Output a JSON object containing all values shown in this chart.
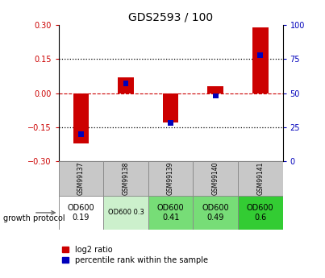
{
  "title": "GDS2593 / 100",
  "samples": [
    "GSM99137",
    "GSM99138",
    "GSM99139",
    "GSM99140",
    "GSM99141"
  ],
  "log2_ratio": [
    -0.22,
    0.07,
    -0.13,
    0.03,
    0.29
  ],
  "percentile_rank": [
    20,
    57,
    28,
    48,
    78
  ],
  "ylim_left": [
    -0.3,
    0.3
  ],
  "ylim_right": [
    0,
    100
  ],
  "yticks_left": [
    -0.3,
    -0.15,
    0,
    0.15,
    0.3
  ],
  "yticks_right": [
    0,
    25,
    50,
    75,
    100
  ],
  "red_color": "#cc0000",
  "blue_color": "#0000bb",
  "dotted_color": "#000000",
  "dashed_zero_color": "#cc0000",
  "protocol_labels": [
    "OD600\n0.19",
    "OD600 0.3",
    "OD600\n0.41",
    "OD600\n0.49",
    "OD600\n0.6"
  ],
  "protocol_bg": [
    "#ffffff",
    "#ccf0cc",
    "#77dd77",
    "#77dd77",
    "#33cc33"
  ],
  "protocol_fontsize": [
    7,
    6,
    7,
    7,
    7
  ],
  "sample_bg": "#c8c8c8",
  "legend_red": "log2 ratio",
  "legend_blue": "percentile rank within the sample"
}
